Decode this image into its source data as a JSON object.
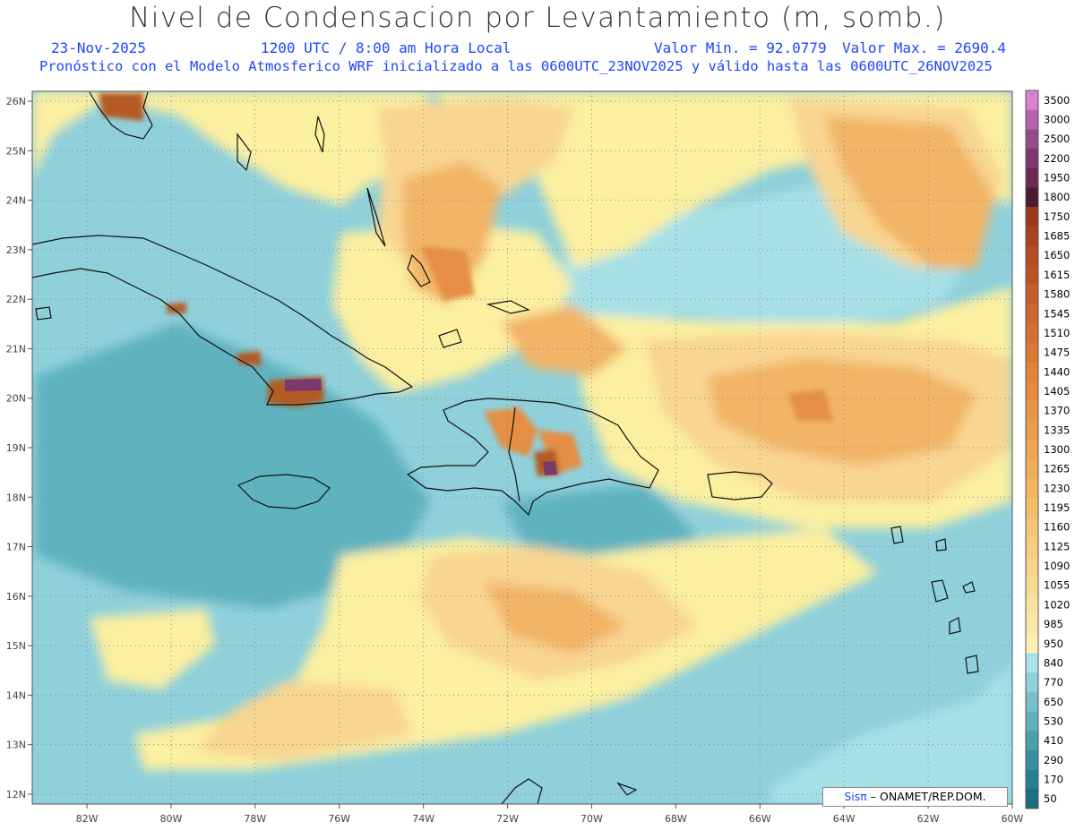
{
  "header": {
    "title": "Nivel de Condensacion por Levantamiento (m, somb.)",
    "date": "23-Nov-2025",
    "time": "1200 UTC / 8:00 am Hora Local",
    "min_label": "Valor Min. = 92.0779",
    "max_label": "Valor Max. = 2690.4",
    "forecast": "Pronóstico con el Modelo Atmosferico WRF inicializado a las 0600UTC_23NOV2025 y válido hasta las  0600UTC_26NOV2025"
  },
  "map": {
    "lon_min": -83.3,
    "lon_max": -60,
    "lat_min": 11.8,
    "lat_max": 26.2,
    "lon_labels": [
      "82W",
      "80W",
      "78W",
      "76W",
      "74W",
      "72W",
      "70W",
      "68W",
      "66W",
      "64W",
      "62W",
      "60W"
    ],
    "lon_values": [
      -82,
      -80,
      -78,
      -76,
      -74,
      -72,
      -70,
      -68,
      -66,
      -64,
      -62,
      -60
    ],
    "lat_labels": [
      "12N",
      "13N",
      "14N",
      "15N",
      "16N",
      "17N",
      "18N",
      "19N",
      "20N",
      "21N",
      "22N",
      "23N",
      "24N",
      "25N",
      "26N"
    ],
    "lat_values": [
      12,
      13,
      14,
      15,
      16,
      17,
      18,
      19,
      20,
      21,
      22,
      23,
      24,
      25,
      26
    ],
    "colors": {
      "base": "#8fd0db",
      "sea_dark": "#5fb3bf",
      "sea_light": "#a6e0e6",
      "yellow": "#fbefa0",
      "light_orange": "#f8d591",
      "orange": "#f2b466",
      "dark_orange": "#e48f45",
      "brown": "#b45a23",
      "purple": "#7a3a6c",
      "coast": "#111111"
    }
  },
  "colorbar": {
    "labels": [
      "3500",
      "3000",
      "2500",
      "2200",
      "1950",
      "1800",
      "1750",
      "1685",
      "1650",
      "1615",
      "1580",
      "1545",
      "1510",
      "1475",
      "1440",
      "1405",
      "1370",
      "1335",
      "1300",
      "1265",
      "1230",
      "1195",
      "1160",
      "1125",
      "1090",
      "1055",
      "1020",
      "985",
      "950",
      "840",
      "770",
      "650",
      "530",
      "410",
      "290",
      "170",
      "50"
    ],
    "colors": [
      "#d982d4",
      "#b963b0",
      "#974b8f",
      "#7d3770",
      "#6a2950",
      "#4d1a33",
      "#9c391c",
      "#a84320",
      "#b34a22",
      "#bc5326",
      "#c55d2b",
      "#cd672e",
      "#d47032",
      "#da7936",
      "#df823b",
      "#e38b40",
      "#e69446",
      "#e99d4c",
      "#eca552",
      "#efae5a",
      "#f2b663",
      "#f4be6d",
      "#f6c677",
      "#f7cd81",
      "#f9d48b",
      "#fadb95",
      "#fbe29f",
      "#fce9a8",
      "#fdf0b2",
      "#a8e2e8",
      "#8fd0da",
      "#77c0cc",
      "#60b0bd",
      "#4aa0ae",
      "#3790a0",
      "#258091",
      "#1a6f80"
    ]
  },
  "credit": {
    "brand": "Sisπ",
    "rest": "– ONAMET/REP.DOM."
  }
}
